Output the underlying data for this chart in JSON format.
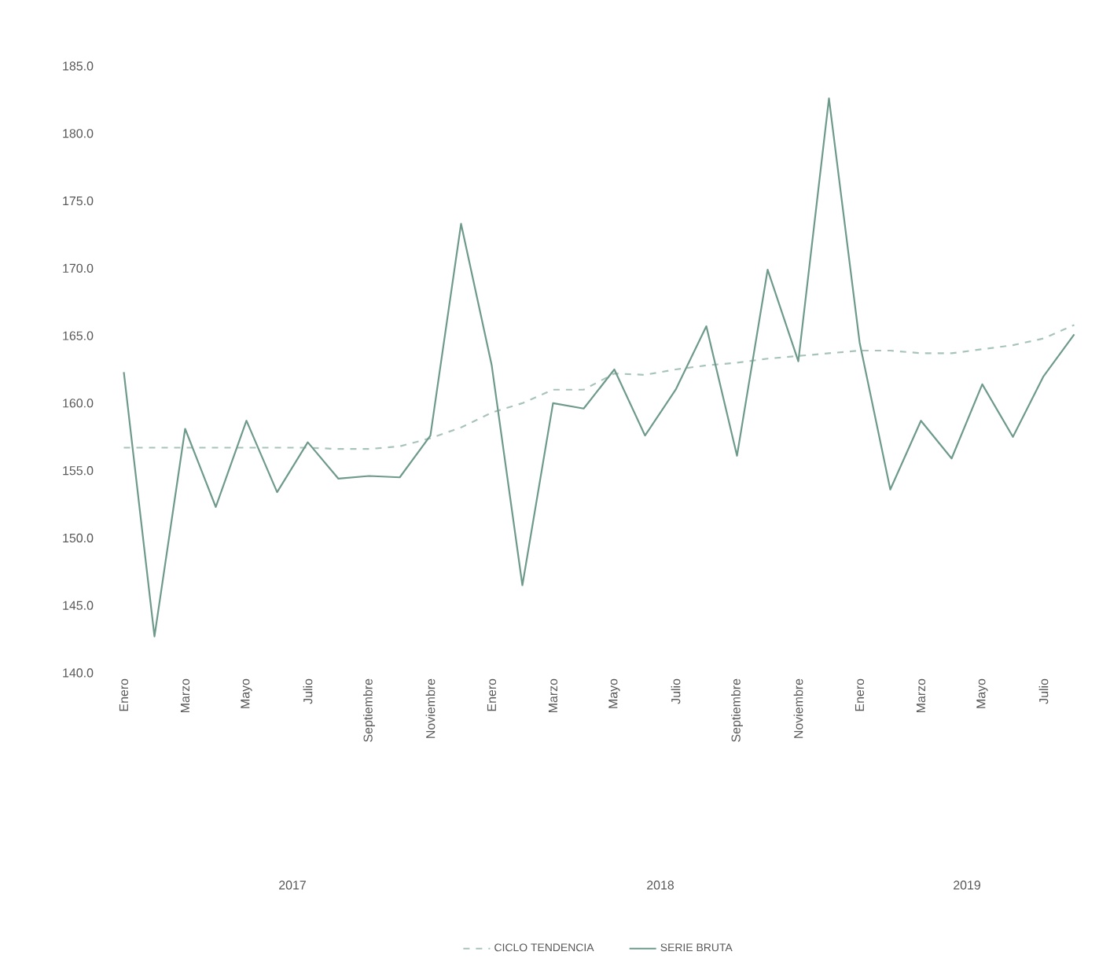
{
  "chart_data": {
    "type": "line",
    "categories": [
      "Enero",
      null,
      "Marzo",
      null,
      "Mayo",
      null,
      "Julio",
      null,
      "Septiembre",
      null,
      "Noviembre",
      null,
      "Enero",
      null,
      "Marzo",
      null,
      "Mayo",
      null,
      "Julio",
      null,
      "Septiembre",
      null,
      "Noviembre",
      null,
      "Enero",
      null,
      "Marzo",
      null,
      "Mayo",
      null,
      "Julio",
      null
    ],
    "series": [
      {
        "name": "CICLO TENDENCIA",
        "color": "#a8c4b8",
        "line_style": "dashed",
        "values": [
          156.7,
          156.7,
          156.7,
          156.7,
          156.7,
          156.7,
          156.7,
          156.6,
          156.6,
          156.8,
          157.4,
          158.2,
          159.3,
          160.0,
          161.0,
          161.0,
          162.2,
          162.1,
          162.5,
          162.8,
          163.0,
          163.3,
          163.5,
          163.7,
          163.9,
          163.9,
          163.7,
          163.7,
          164.0,
          164.3,
          164.8,
          165.8
        ]
      },
      {
        "name": "SERIE BRUTA",
        "color": "#6e9a8c",
        "line_style": "solid",
        "values": [
          162.3,
          142.7,
          158.1,
          152.3,
          158.7,
          153.4,
          157.1,
          154.4,
          154.6,
          154.5,
          157.6,
          173.3,
          162.8,
          146.5,
          160.0,
          159.6,
          162.5,
          157.6,
          161.0,
          165.7,
          156.1,
          169.9,
          163.1,
          182.6,
          164.5,
          153.6,
          158.7,
          155.9,
          161.4,
          157.5,
          162.0,
          165.1
        ]
      }
    ],
    "ylim": [
      140,
      185
    ],
    "yticks": [
      {
        "value": 140,
        "label": "140.0"
      },
      {
        "value": 145,
        "label": "145.0"
      },
      {
        "value": 150,
        "label": "150.0"
      },
      {
        "value": 155,
        "label": "155.0"
      },
      {
        "value": 160,
        "label": "160.0"
      },
      {
        "value": 165,
        "label": "165.0"
      },
      {
        "value": 170,
        "label": "170.0"
      },
      {
        "value": 175,
        "label": "175.0"
      },
      {
        "value": 180,
        "label": "180.0"
      },
      {
        "value": 185,
        "label": "185.0"
      }
    ],
    "annotations": [
      "2017",
      "2018",
      "2019"
    ],
    "legend": "bottom",
    "grid": false,
    "marker": "none"
  }
}
